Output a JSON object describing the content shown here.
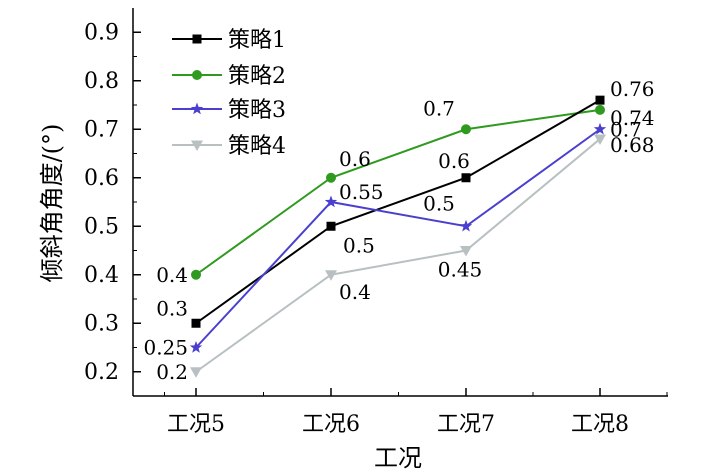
{
  "chart_data": {
    "type": "line",
    "title": "",
    "xlabel": "工况",
    "ylabel": "倾斜角角度/(°)",
    "categories": [
      "工况5",
      "工况6",
      "工况7",
      "工况8"
    ],
    "ylim": [
      0.15,
      0.95
    ],
    "yticks": [
      "0.2",
      "0.3",
      "0.4",
      "0.5",
      "0.6",
      "0.7",
      "0.8",
      "0.9"
    ],
    "legend_position": "top-left",
    "series": [
      {
        "name": "策略1",
        "color": "#000000",
        "marker": "square",
        "values": [
          0.3,
          0.5,
          0.6,
          0.76
        ],
        "labels": [
          "0.3",
          "0.5",
          "0.6",
          "0.76"
        ]
      },
      {
        "name": "策略2",
        "color": "#2f9a1f",
        "marker": "circle",
        "values": [
          0.4,
          0.6,
          0.7,
          0.74
        ],
        "labels": [
          "0.4",
          "0.6",
          "0.7",
          "0.74"
        ]
      },
      {
        "name": "策略3",
        "color": "#4a3fcf",
        "marker": "star",
        "values": [
          0.25,
          0.55,
          0.5,
          0.7
        ],
        "labels": [
          "0.25",
          "0.55",
          "0.5",
          "0.7"
        ]
      },
      {
        "name": "策略4",
        "color": "#b8c0c2",
        "marker": "triangle-down",
        "values": [
          0.2,
          0.4,
          0.45,
          0.68
        ],
        "labels": [
          "0.2",
          "0.4",
          "0.45",
          "0.68"
        ]
      }
    ]
  }
}
